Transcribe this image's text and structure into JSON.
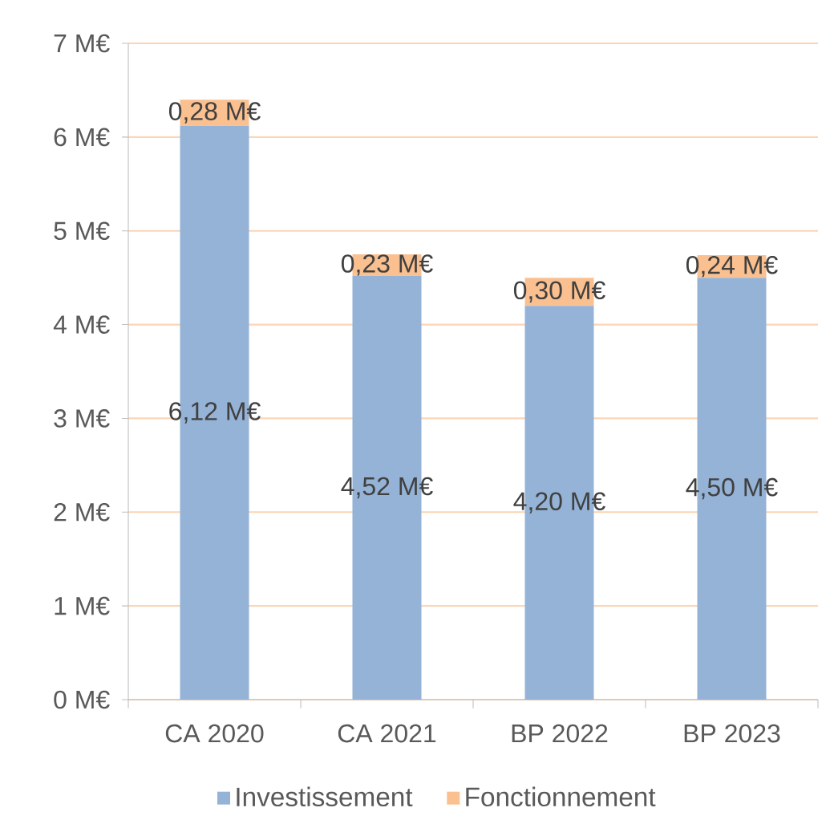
{
  "chart_data": {
    "type": "bar",
    "stacked": true,
    "categories": [
      "CA 2020",
      "CA 2021",
      "BP 2022",
      "BP 2023"
    ],
    "series": [
      {
        "name": "Investissement",
        "color": "#95b3d7",
        "values": [
          6.12,
          4.52,
          4.2,
          4.5
        ],
        "value_labels": [
          "6,12 M€",
          "4,52 M€",
          "4,20 M€",
          "4,50 M€"
        ]
      },
      {
        "name": "Fonctionnement",
        "color": "#fac090",
        "values": [
          0.28,
          0.23,
          0.3,
          0.24
        ],
        "value_labels": [
          "0,28 M€",
          "0,23 M€",
          "0,30 M€",
          "0,24 M€"
        ]
      }
    ],
    "ylim": [
      0,
      7
    ],
    "yticks": [
      {
        "value": 0,
        "label": "0 M€"
      },
      {
        "value": 1,
        "label": "1 M€"
      },
      {
        "value": 2,
        "label": "2 M€"
      },
      {
        "value": 3,
        "label": "3 M€"
      },
      {
        "value": 4,
        "label": "4 M€"
      },
      {
        "value": 5,
        "label": "5 M€"
      },
      {
        "value": 6,
        "label": "6 M€"
      },
      {
        "value": 7,
        "label": "7 M€"
      }
    ],
    "grid": "y",
    "legend": "bottom"
  }
}
